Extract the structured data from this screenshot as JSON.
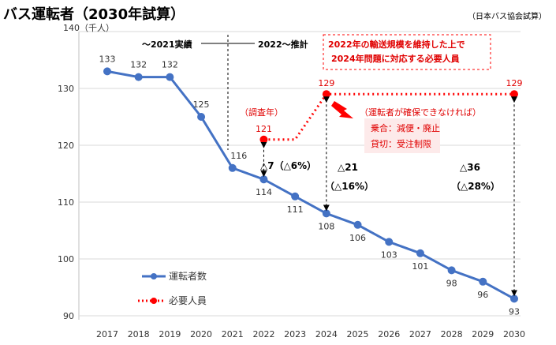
{
  "title": "バス運転者（2030年試算）",
  "source": "（日本バス協会試算）",
  "chart_data": {
    "type": "line",
    "y_unit": "140（千人）",
    "ylim": [
      90,
      140
    ],
    "yticks": [
      90,
      100,
      110,
      120,
      130
    ],
    "categories": [
      "2017",
      "2018",
      "2019",
      "2020",
      "2021",
      "2022",
      "2023",
      "2024",
      "2025",
      "2026",
      "2027",
      "2028",
      "2029",
      "2030"
    ],
    "series": [
      {
        "name": "運転者数",
        "color": "#4472c4",
        "style": "solid",
        "values": [
          133,
          132,
          132,
          125,
          116,
          114,
          111,
          108,
          106,
          103,
          101,
          98,
          96,
          93
        ]
      },
      {
        "name": "必要人員",
        "color": "#ff0000",
        "style": "dotted",
        "points": [
          [
            "2022",
            121
          ],
          [
            "2023",
            121
          ],
          [
            "2024",
            129
          ],
          [
            "2030",
            129
          ]
        ]
      }
    ],
    "labels": {
      "actual": "〜2021実績",
      "forecast": "2022〜推計",
      "survey_year": "（調査年）",
      "gap_2022": "△7（△6%）",
      "gap_2024_a": "△21",
      "gap_2024_b": "（△16%）",
      "gap_2030_a": "△36",
      "gap_2030_b": "（△28%）",
      "callout_line1": "2022年の輸送規模を維持した上で",
      "callout_line2": "2024年問題に対応する必要人員",
      "shortage_note": "（運転者が確保できなければ）",
      "shortage_item1": "乗合：減便・廃止",
      "shortage_item2": "貸切：受注制限"
    }
  }
}
